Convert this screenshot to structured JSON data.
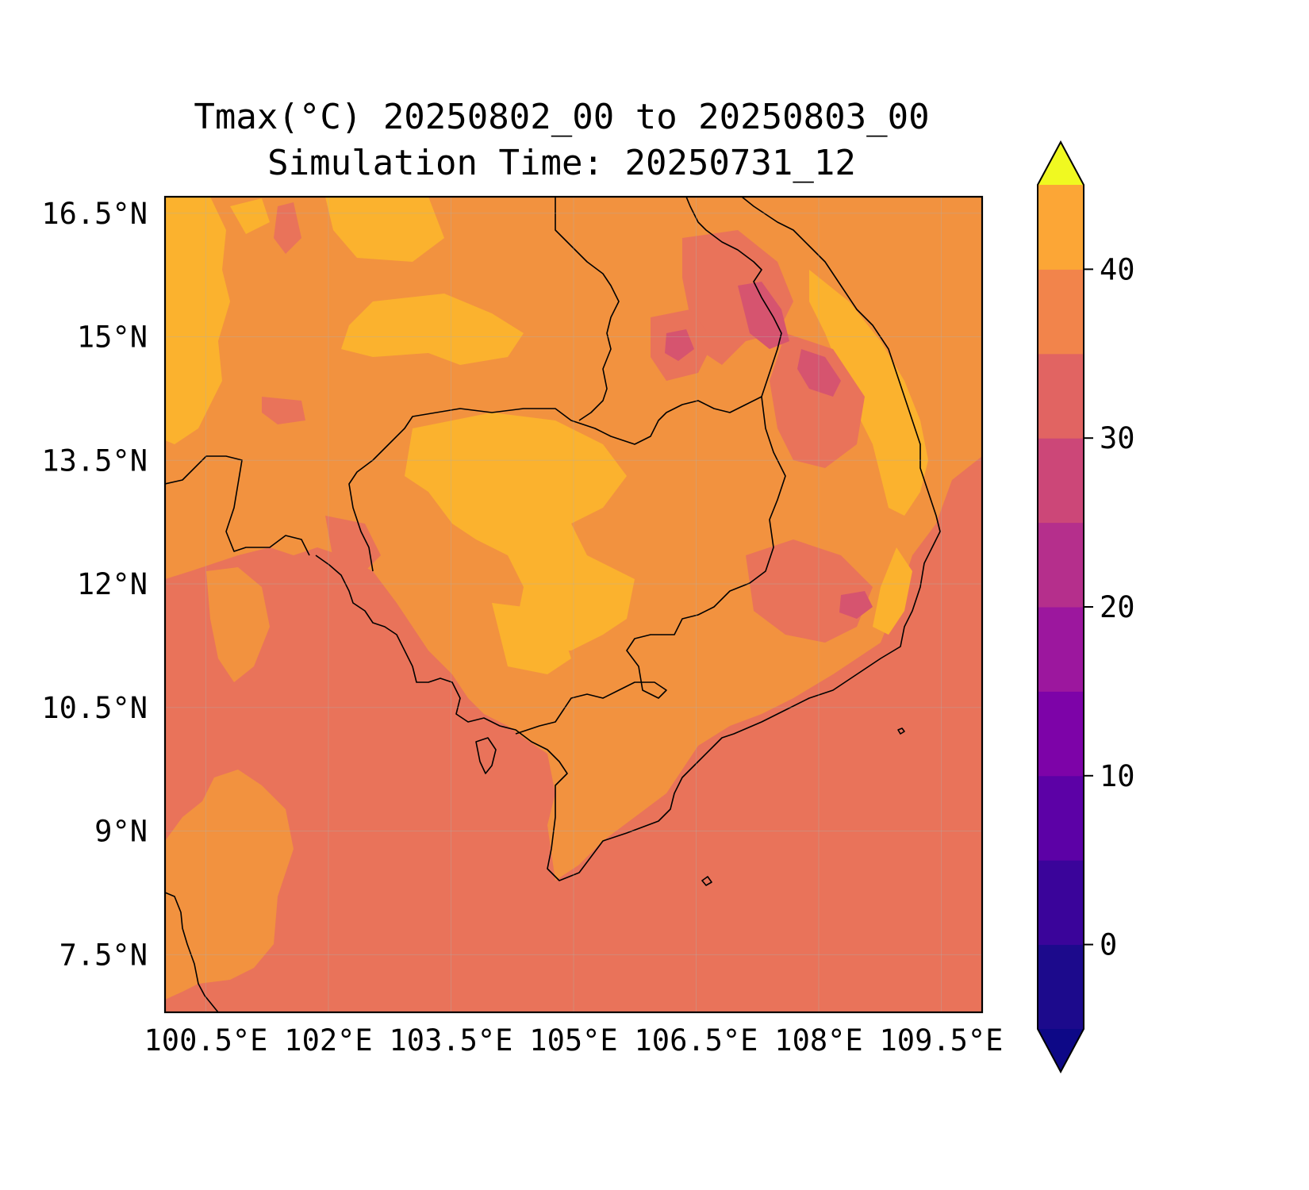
{
  "title": {
    "line1": "Tmax(°C) 20250802_00 to 20250803_00",
    "line2": "Simulation Time: 20250731_12"
  },
  "map": {
    "lon_range": [
      100.0,
      110.0
    ],
    "lat_range": [
      6.8,
      16.7
    ],
    "lon_ticks": [
      {
        "value": 100.5,
        "label": "100.5°E"
      },
      {
        "value": 102.0,
        "label": "102°E"
      },
      {
        "value": 103.5,
        "label": "103.5°E"
      },
      {
        "value": 105.0,
        "label": "105°E"
      },
      {
        "value": 106.5,
        "label": "106.5°E"
      },
      {
        "value": 108.0,
        "label": "108°E"
      },
      {
        "value": 109.5,
        "label": "109.5°E"
      }
    ],
    "lat_ticks": [
      {
        "value": 16.5,
        "label": "16.5°N"
      },
      {
        "value": 15.0,
        "label": "15°N"
      },
      {
        "value": 13.5,
        "label": "13.5°N"
      },
      {
        "value": 12.0,
        "label": "12°N"
      },
      {
        "value": 10.5,
        "label": "10.5°N"
      },
      {
        "value": 9.0,
        "label": "9°N"
      },
      {
        "value": 7.5,
        "label": "7.5°N"
      }
    ],
    "grid": true,
    "variable": "Tmax",
    "units": "°C"
  },
  "colorbar": {
    "min": -5,
    "max": 45,
    "levels": [
      -5,
      0,
      5,
      10,
      15,
      20,
      25,
      30,
      35,
      40,
      45
    ],
    "colors": [
      "#1c0a8c",
      "#3a049a",
      "#5c01a6",
      "#7d03a8",
      "#9c179e",
      "#b52f8c",
      "#cc4778",
      "#e16462",
      "#f2844b",
      "#fca636",
      "#f0f921"
    ],
    "extend_low_color": "#0d0887",
    "extend_high_color": "#f0f921",
    "tick_values": [
      0,
      10,
      20,
      30,
      40
    ],
    "tick_labels": [
      "0",
      "10",
      "20",
      "30",
      "40"
    ]
  }
}
